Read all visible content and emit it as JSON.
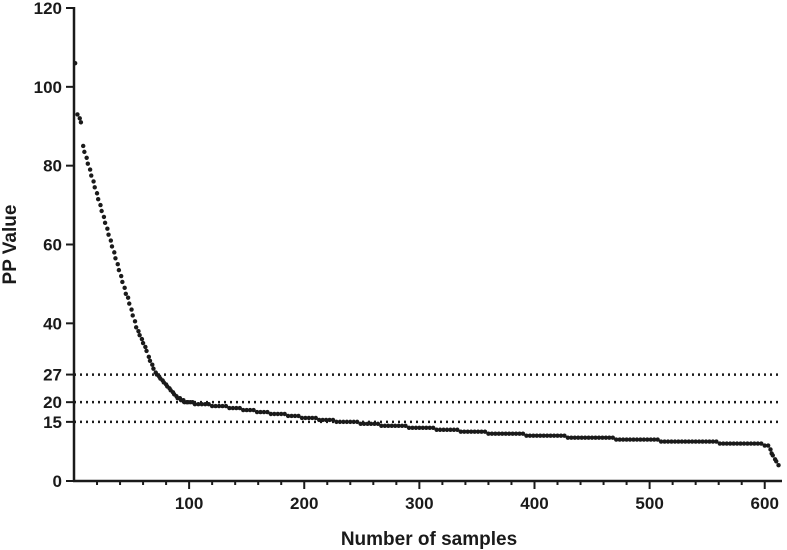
{
  "chart_data": {
    "type": "scatter",
    "title": "",
    "xlabel": "Number of samples",
    "ylabel": "PP Value",
    "xlim": [
      0,
      615
    ],
    "ylim": [
      0,
      120
    ],
    "x_ticks": [
      100,
      200,
      300,
      400,
      500,
      600
    ],
    "x_minor_ticks": [
      20,
      40,
      60,
      80,
      120,
      140,
      160,
      180,
      220,
      240,
      260,
      280,
      320,
      340,
      360,
      380,
      420,
      440,
      460,
      480,
      520,
      540,
      560,
      580
    ],
    "y_ticks": [
      0,
      15,
      20,
      27,
      40,
      60,
      80,
      100,
      120
    ],
    "reference_lines": [
      27,
      20,
      15
    ],
    "grid": false,
    "legend": "none",
    "color": "#1a1a1a",
    "series": [
      {
        "points": [
          [
            1,
            106
          ],
          [
            3,
            93
          ],
          [
            5,
            92
          ],
          [
            6,
            91
          ],
          [
            8,
            85
          ],
          [
            9,
            83.5
          ],
          [
            11,
            82
          ],
          [
            12,
            80.5
          ],
          [
            14,
            79
          ],
          [
            15,
            77.5
          ],
          [
            17,
            76
          ],
          [
            18,
            74.5
          ],
          [
            20,
            73
          ],
          [
            21,
            71.5
          ],
          [
            23,
            70
          ],
          [
            24,
            68.5
          ],
          [
            26,
            67
          ],
          [
            27,
            65.5
          ],
          [
            29,
            64
          ],
          [
            30,
            62.5
          ],
          [
            32,
            61
          ],
          [
            33,
            59.5
          ],
          [
            35,
            58
          ],
          [
            36,
            56.5
          ],
          [
            38,
            55
          ],
          [
            39,
            53.5
          ],
          [
            41,
            52
          ],
          [
            42,
            50.5
          ],
          [
            44,
            49
          ],
          [
            45,
            47.5
          ],
          [
            47,
            46.5
          ],
          [
            48,
            45
          ],
          [
            50,
            43.5
          ],
          [
            51,
            42
          ],
          [
            53,
            40.5
          ],
          [
            54,
            39
          ],
          [
            56,
            38
          ],
          [
            57,
            37
          ],
          [
            59,
            36
          ],
          [
            60,
            35
          ],
          [
            62,
            34
          ],
          [
            63,
            33
          ],
          [
            65,
            31.5
          ],
          [
            66,
            30.5
          ],
          [
            68,
            29.5
          ],
          [
            69,
            28.5
          ],
          [
            71,
            27.5
          ],
          [
            72,
            27
          ],
          [
            74,
            26.5
          ],
          [
            75,
            26
          ],
          [
            77,
            25.5
          ],
          [
            78,
            25
          ],
          [
            80,
            24.5
          ],
          [
            81,
            24
          ],
          [
            83,
            23.5
          ],
          [
            84,
            23
          ],
          [
            86,
            22.5
          ],
          [
            87,
            22
          ],
          [
            89,
            21.5
          ],
          [
            90,
            21
          ],
          [
            92,
            21
          ],
          [
            93,
            20.5
          ],
          [
            95,
            20.5
          ],
          [
            96,
            20
          ],
          [
            98,
            20
          ],
          [
            99,
            20
          ],
          [
            101,
            20
          ],
          [
            103,
            20
          ],
          [
            105,
            19.5
          ],
          [
            108,
            19.5
          ],
          [
            111,
            19.5
          ],
          [
            114,
            19.5
          ],
          [
            117,
            19.5
          ],
          [
            120,
            19
          ],
          [
            123,
            19
          ],
          [
            126,
            19
          ],
          [
            129,
            19
          ],
          [
            132,
            19
          ],
          [
            135,
            18.5
          ],
          [
            138,
            18.5
          ],
          [
            141,
            18.5
          ],
          [
            144,
            18.5
          ],
          [
            147,
            18
          ],
          [
            150,
            18
          ],
          [
            153,
            18
          ],
          [
            156,
            18
          ],
          [
            159,
            17.5
          ],
          [
            162,
            17.5
          ],
          [
            165,
            17.5
          ],
          [
            168,
            17.5
          ],
          [
            171,
            17
          ],
          [
            174,
            17
          ],
          [
            177,
            17
          ],
          [
            180,
            17
          ],
          [
            183,
            17
          ],
          [
            186,
            16.5
          ],
          [
            189,
            16.5
          ],
          [
            192,
            16.5
          ],
          [
            195,
            16.5
          ],
          [
            198,
            16
          ],
          [
            201,
            16
          ],
          [
            204,
            16
          ],
          [
            207,
            16
          ],
          [
            210,
            16
          ],
          [
            213,
            15.5
          ],
          [
            216,
            15.5
          ],
          [
            219,
            15.5
          ],
          [
            222,
            15.5
          ],
          [
            225,
            15.5
          ],
          [
            228,
            15
          ],
          [
            231,
            15
          ],
          [
            234,
            15
          ],
          [
            237,
            15
          ],
          [
            240,
            15
          ],
          [
            243,
            15
          ],
          [
            246,
            15
          ],
          [
            249,
            14.5
          ],
          [
            252,
            14.5
          ],
          [
            255,
            14.5
          ],
          [
            258,
            14.5
          ],
          [
            261,
            14.5
          ],
          [
            264,
            14.5
          ],
          [
            267,
            14
          ],
          [
            270,
            14
          ],
          [
            273,
            14
          ],
          [
            276,
            14
          ],
          [
            279,
            14
          ],
          [
            282,
            14
          ],
          [
            285,
            14
          ],
          [
            288,
            14
          ],
          [
            291,
            13.5
          ],
          [
            294,
            13.5
          ],
          [
            297,
            13.5
          ],
          [
            300,
            13.5
          ],
          [
            303,
            13.5
          ],
          [
            306,
            13.5
          ],
          [
            309,
            13.5
          ],
          [
            312,
            13.5
          ],
          [
            315,
            13
          ],
          [
            318,
            13
          ],
          [
            321,
            13
          ],
          [
            324,
            13
          ],
          [
            327,
            13
          ],
          [
            330,
            13
          ],
          [
            333,
            13
          ],
          [
            336,
            12.5
          ],
          [
            339,
            12.5
          ],
          [
            342,
            12.5
          ],
          [
            345,
            12.5
          ],
          [
            348,
            12.5
          ],
          [
            351,
            12.5
          ],
          [
            354,
            12.5
          ],
          [
            357,
            12.5
          ],
          [
            360,
            12
          ],
          [
            363,
            12
          ],
          [
            366,
            12
          ],
          [
            369,
            12
          ],
          [
            372,
            12
          ],
          [
            375,
            12
          ],
          [
            378,
            12
          ],
          [
            381,
            12
          ],
          [
            384,
            12
          ],
          [
            387,
            12
          ],
          [
            390,
            12
          ],
          [
            393,
            11.5
          ],
          [
            396,
            11.5
          ],
          [
            399,
            11.5
          ],
          [
            402,
            11.5
          ],
          [
            405,
            11.5
          ],
          [
            408,
            11.5
          ],
          [
            411,
            11.5
          ],
          [
            414,
            11.5
          ],
          [
            417,
            11.5
          ],
          [
            420,
            11.5
          ],
          [
            423,
            11.5
          ],
          [
            426,
            11.5
          ],
          [
            429,
            11
          ],
          [
            432,
            11
          ],
          [
            435,
            11
          ],
          [
            438,
            11
          ],
          [
            441,
            11
          ],
          [
            444,
            11
          ],
          [
            447,
            11
          ],
          [
            450,
            11
          ],
          [
            453,
            11
          ],
          [
            456,
            11
          ],
          [
            459,
            11
          ],
          [
            462,
            11
          ],
          [
            465,
            11
          ],
          [
            468,
            11
          ],
          [
            471,
            10.5
          ],
          [
            474,
            10.5
          ],
          [
            477,
            10.5
          ],
          [
            480,
            10.5
          ],
          [
            483,
            10.5
          ],
          [
            486,
            10.5
          ],
          [
            489,
            10.5
          ],
          [
            492,
            10.5
          ],
          [
            495,
            10.5
          ],
          [
            498,
            10.5
          ],
          [
            501,
            10.5
          ],
          [
            504,
            10.5
          ],
          [
            507,
            10.5
          ],
          [
            510,
            10
          ],
          [
            513,
            10
          ],
          [
            516,
            10
          ],
          [
            519,
            10
          ],
          [
            522,
            10
          ],
          [
            525,
            10
          ],
          [
            528,
            10
          ],
          [
            531,
            10
          ],
          [
            534,
            10
          ],
          [
            537,
            10
          ],
          [
            540,
            10
          ],
          [
            543,
            10
          ],
          [
            546,
            10
          ],
          [
            549,
            10
          ],
          [
            552,
            10
          ],
          [
            555,
            10
          ],
          [
            558,
            10
          ],
          [
            561,
            9.5
          ],
          [
            564,
            9.5
          ],
          [
            567,
            9.5
          ],
          [
            570,
            9.5
          ],
          [
            573,
            9.5
          ],
          [
            576,
            9.5
          ],
          [
            579,
            9.5
          ],
          [
            582,
            9.5
          ],
          [
            585,
            9.5
          ],
          [
            588,
            9.5
          ],
          [
            591,
            9.5
          ],
          [
            594,
            9.5
          ],
          [
            597,
            9.5
          ],
          [
            600,
            9
          ],
          [
            603,
            9
          ],
          [
            605,
            8
          ],
          [
            606,
            7
          ],
          [
            607,
            6.5
          ],
          [
            609,
            5.5
          ],
          [
            610,
            5
          ],
          [
            612,
            4
          ]
        ]
      }
    ]
  }
}
